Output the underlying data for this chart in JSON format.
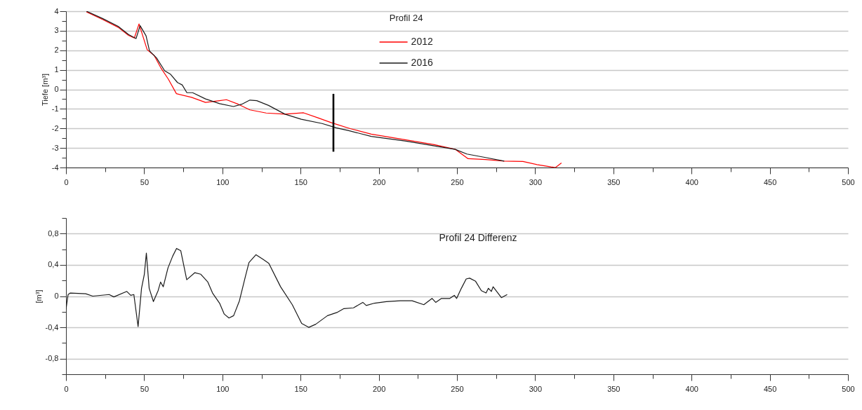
{
  "chart_data": [
    {
      "type": "line",
      "ylabel": "Tiefe [m³]",
      "legend_title": "Profil 24",
      "legend": "top",
      "grid": "y",
      "xlim": [
        0,
        500
      ],
      "ylim": [
        -4,
        4
      ],
      "xticks": [
        0,
        {
          "value": 25,
          "label": null
        },
        50,
        {
          "value": 75,
          "label": null
        },
        100,
        {
          "value": 125,
          "label": null
        },
        150,
        {
          "value": 175,
          "label": null
        },
        200,
        {
          "value": 225,
          "label": null
        },
        250,
        {
          "value": 275,
          "label": null
        },
        300,
        {
          "value": 325,
          "label": null
        },
        350,
        {
          "value": 375,
          "label": null
        },
        400,
        {
          "value": 425,
          "label": null
        },
        450,
        {
          "value": 475,
          "label": null
        },
        500
      ],
      "yticks": [
        -4,
        {
          "value": -3.5,
          "label": null
        },
        -3,
        {
          "value": -2.5,
          "label": null
        },
        -2,
        {
          "value": -1.5,
          "label": null
        },
        -1,
        {
          "value": -0.5,
          "label": null
        },
        0,
        {
          "value": 0.5,
          "label": null
        },
        1,
        {
          "value": 1.5,
          "label": null
        },
        2,
        {
          "value": 2.5,
          "label": null
        },
        3,
        {
          "value": 3.5,
          "label": null
        },
        4
      ],
      "series": [
        {
          "name": "2012",
          "color": "#ff0000",
          "x": [
            13.1,
            23.6,
            33.3,
            40,
            43.7,
            46.7,
            51.9,
            56.4,
            60.9,
            65.4,
            70.6,
            80.3,
            89.2,
            98.2,
            102.6,
            110.1,
            117.6,
            128,
            140,
            151.9,
            160.8,
            169.8,
            181.7,
            195.2,
            217.5,
            235.5,
            248.9,
            257.1,
            268.3,
            280.2,
            292.2,
            301.1,
            310.1,
            313,
            316.8
          ],
          "values": [
            3.97,
            3.57,
            3.18,
            2.76,
            2.63,
            3.35,
            2.03,
            1.73,
            1.07,
            0.53,
            -0.22,
            -0.41,
            -0.67,
            -0.58,
            -0.53,
            -0.76,
            -1.05,
            -1.21,
            -1.27,
            -1.2,
            -1.45,
            -1.71,
            -2.01,
            -2.29,
            -2.59,
            -2.83,
            -3.07,
            -3.55,
            -3.59,
            -3.67,
            -3.69,
            -3.85,
            -3.97,
            -4.0,
            -3.77
          ]
        },
        {
          "name": "2016",
          "color": "#1a1a1a",
          "x": [
            13.1,
            23.6,
            33.3,
            40,
            44.8,
            47.4,
            51.2,
            53.4,
            57.9,
            63.1,
            66.9,
            71.3,
            74.3,
            77.3,
            81,
            89.2,
            98.2,
            107.1,
            112.4,
            117.6,
            122,
            129.5,
            140,
            150.4,
            163.8,
            172.8,
            181.7,
            195.2,
            217.5,
            235.5,
            248.9,
            256.3,
            268.3,
            280.2
          ],
          "values": [
            4.0,
            3.62,
            3.23,
            2.81,
            2.6,
            3.26,
            2.74,
            1.97,
            1.61,
            0.95,
            0.77,
            0.35,
            0.23,
            -0.17,
            -0.17,
            -0.49,
            -0.73,
            -0.88,
            -0.76,
            -0.55,
            -0.58,
            -0.82,
            -1.27,
            -1.53,
            -1.75,
            -1.97,
            -2.13,
            -2.41,
            -2.65,
            -2.89,
            -3.07,
            -3.31,
            -3.49,
            -3.67
          ]
        },
        {
          "type": "line",
          "color": "#000000",
          "x": [
            171,
            171
          ],
          "values": [
            -0.23,
            -3.19
          ]
        }
      ]
    },
    {
      "type": "line",
      "title": "Profil 24 Differenz",
      "ylabel": "[m³]",
      "grid": "y",
      "xlim": [
        0,
        500
      ],
      "ylim": [
        -1,
        1
      ],
      "xticks": [
        0,
        {
          "value": 25,
          "label": null
        },
        50,
        {
          "value": 75,
          "label": null
        },
        100,
        {
          "value": 125,
          "label": null
        },
        150,
        {
          "value": 175,
          "label": null
        },
        200,
        {
          "value": 225,
          "label": null
        },
        250,
        {
          "value": 275,
          "label": null
        },
        300,
        {
          "value": 325,
          "label": null
        },
        350,
        {
          "value": 375,
          "label": null
        },
        400,
        {
          "value": 425,
          "label": null
        },
        450,
        {
          "value": 475,
          "label": null
        },
        500
      ],
      "yticks": [
        {
          "value": -1,
          "label": null
        },
        {
          "value": -0.8,
          "label": "-0,8"
        },
        {
          "value": -0.6,
          "label": null
        },
        {
          "value": -0.4,
          "label": "-0,4"
        },
        {
          "value": -0.2,
          "label": null
        },
        0,
        {
          "value": 0.2,
          "label": null
        },
        {
          "value": 0.4,
          "label": "0,4"
        },
        {
          "value": 0.6,
          "label": null
        },
        {
          "value": 0.8,
          "label": "0,8"
        },
        {
          "value": 1,
          "label": null
        }
      ],
      "series": [
        {
          "color": "#1a1a1a",
          "x": [
            0,
            1.35,
            2.8,
            12.6,
            17.1,
            27.6,
            30.6,
            38.9,
            41.4,
            43.4,
            46.1,
            48.3,
            50.1,
            51.4,
            53.2,
            55.9,
            58.9,
            60.5,
            62.2,
            65.2,
            68.2,
            70.7,
            73.4,
            77.2,
            82.4,
            86.2,
            90.7,
            93.7,
            98.2,
            101.2,
            104.2,
            107.2,
            110.9,
            114.7,
            117,
            121.5,
            126,
            129.7,
            137.2,
            144.7,
            150.7,
            155.2,
            159.7,
            167.2,
            173.2,
            177.7,
            183.8,
            189.8,
            192,
            197.3,
            204.8,
            213.8,
            221.3,
            228.8,
            234.1,
            236.4,
            240.1,
            245.4,
            248.3,
            249.8,
            252.8,
            255.9,
            258.1,
            261.9,
            265.6,
            268.6,
            270.1,
            272,
            273.1,
            278.4,
            282.1
          ],
          "values": [
            -0.17,
            0.02,
            0.04,
            0.03,
            0.0,
            0.02,
            -0.01,
            0.06,
            0.01,
            0.02,
            -0.39,
            0.1,
            0.28,
            0.55,
            0.1,
            -0.07,
            0.07,
            0.18,
            0.12,
            0.36,
            0.51,
            0.61,
            0.58,
            0.21,
            0.3,
            0.28,
            0.18,
            0.04,
            -0.09,
            -0.23,
            -0.28,
            -0.25,
            -0.06,
            0.25,
            0.43,
            0.53,
            0.47,
            0.42,
            0.12,
            -0.11,
            -0.35,
            -0.4,
            -0.36,
            -0.25,
            -0.21,
            -0.16,
            -0.15,
            -0.08,
            -0.12,
            -0.09,
            -0.07,
            -0.06,
            -0.06,
            -0.11,
            -0.03,
            -0.08,
            -0.03,
            -0.03,
            0.01,
            -0.03,
            0.1,
            0.22,
            0.23,
            0.19,
            0.07,
            0.04,
            0.1,
            0.06,
            0.12,
            -0.02,
            0.02
          ]
        }
      ]
    }
  ]
}
